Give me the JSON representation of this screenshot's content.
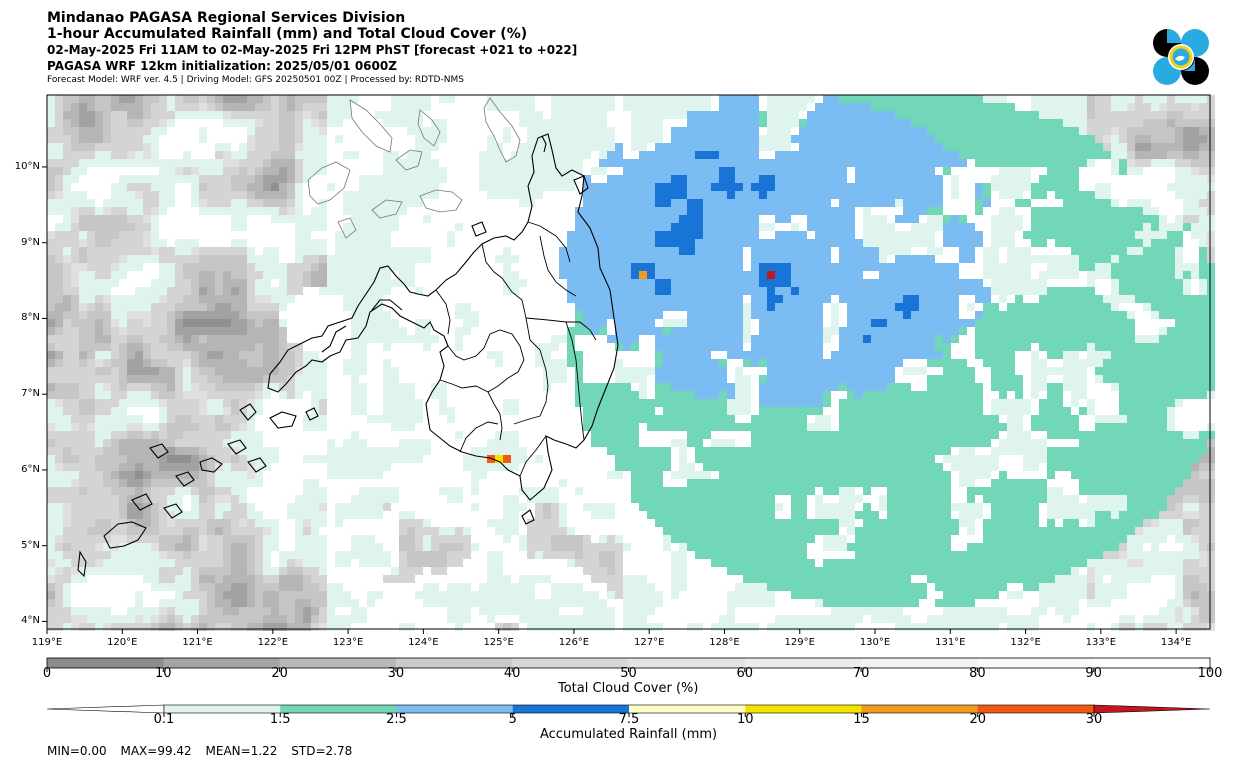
{
  "header": {
    "division": "Mindanao PAGASA Regional Services Division",
    "product": "1-hour Accumulated Rainfall (mm) and Total Cloud Cover (%)",
    "valid_time": "02-May-2025 Fri 11AM to 02-May-2025 Fri 12PM PhST [forecast +021 to +022]",
    "init": "PAGASA WRF 12km initialization: 2025/05/01 0600Z",
    "models": "Forecast Model: WRF ver. 4.5 | Driving Model: GFS 20250501 00Z | Processed by: RDTD-NMS"
  },
  "logo": {
    "icon": "pagasa-logo-icon",
    "colors": [
      "#000000",
      "#29abe2",
      "#f7d117"
    ]
  },
  "map": {
    "lon_labels": [
      "119°E",
      "120°E",
      "121°E",
      "122°E",
      "123°E",
      "124°E",
      "125°E",
      "126°E",
      "127°E",
      "128°E",
      "129°E",
      "130°E",
      "131°E",
      "132°E",
      "133°E",
      "134°E"
    ],
    "lat_labels": [
      "10°N",
      "9°N",
      "8°N",
      "7°N",
      "6°N",
      "5°N",
      "4°N"
    ],
    "lon_range": [
      119,
      134.45
    ],
    "lat_range": [
      3.9,
      10.95
    ]
  },
  "cloud_cover_bar": {
    "ticks": [
      "0",
      "10",
      "20",
      "30",
      "40",
      "50",
      "60",
      "70",
      "80",
      "90",
      "100"
    ],
    "label": "Total Cloud Cover (%)",
    "colors": [
      "#8c8c8c",
      "#a4a4a4",
      "#b8b8b8",
      "#cacaca",
      "#d8d8d8",
      "#e3e3e3",
      "#ececec",
      "#f3f3f3",
      "#f9f9f9",
      "#ffffff"
    ]
  },
  "rainfall_bar": {
    "ticks": [
      "0.1",
      "1.5",
      "2.5",
      "5",
      "7.5",
      "10",
      "15",
      "20",
      "30"
    ],
    "label": "Accumulated Rainfall (mm)",
    "colors": [
      "#ffffff",
      "#dff4ec",
      "#72d6b8",
      "#7bbdf2",
      "#1874d6",
      "#fffec8",
      "#f5e400",
      "#f19a20",
      "#ef5a10",
      "#c2171d"
    ]
  },
  "stats": {
    "min": "MIN=0.00",
    "max": "MAX=99.42",
    "mean": "MEAN=1.22",
    "std": "STD=2.78"
  }
}
